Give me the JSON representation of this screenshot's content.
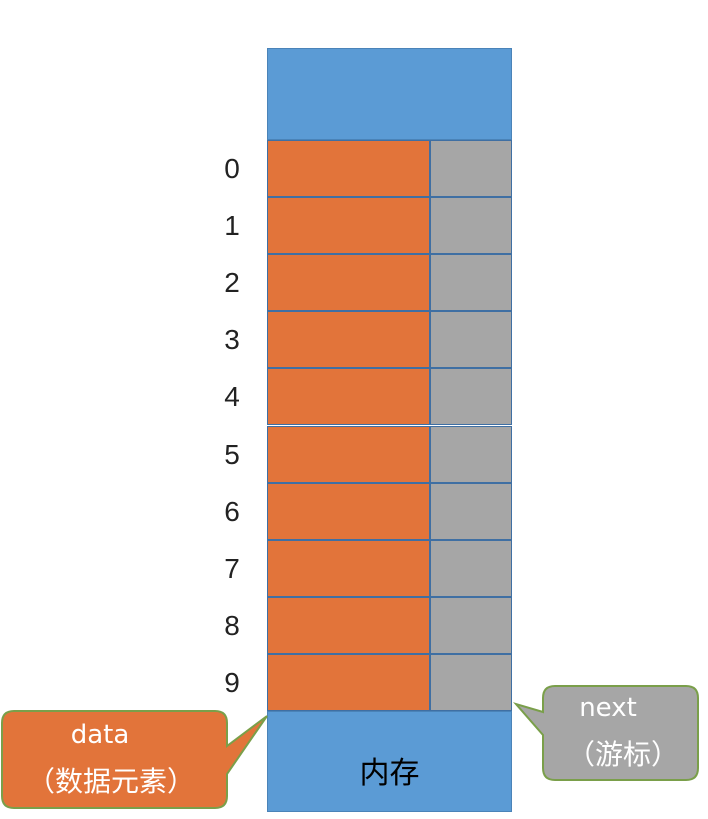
{
  "indices": [
    "0",
    "1",
    "2",
    "3",
    "4",
    "5",
    "6",
    "7",
    "8",
    "9"
  ],
  "memory_label": "内存",
  "data_callout": {
    "title": "data",
    "subtitle": "（数据元素）"
  },
  "next_callout": {
    "title": "next",
    "subtitle": "（游标）"
  },
  "colors": {
    "memory_block": "#5b9bd5",
    "data_cell": "#e2743a",
    "next_cell": "#a6a6a6",
    "data_callout": "#e2743a",
    "next_callout": "#a6a6a6"
  }
}
